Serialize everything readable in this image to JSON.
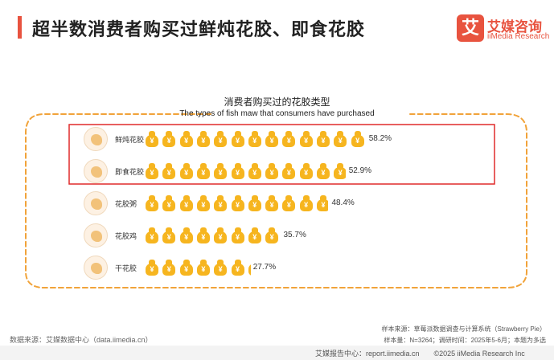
{
  "header": {
    "title": "超半数消费者购买过鲜炖花胶、即食花胶"
  },
  "logo": {
    "mark": "艾",
    "name_cn": "艾媒咨询",
    "name_en": "iiMedia Research"
  },
  "chart_data": {
    "type": "bar",
    "title": "消费者购买过的花胶类型",
    "subtitle": "The types of fish maw that consumers have purchased",
    "categories": [
      "鲜炖花胶",
      "即食花胶",
      "花胶粥",
      "花胶鸡",
      "干花胶"
    ],
    "values": [
      58.2,
      52.9,
      48.4,
      35.7,
      27.7
    ],
    "value_labels": [
      "58.2%",
      "52.9%",
      "48.4%",
      "35.7%",
      "27.7%"
    ],
    "unit": "%",
    "xlim": [
      0,
      100
    ],
    "highlighted": [
      "鲜炖花胶",
      "即食花胶"
    ],
    "highlight_color": "#e02a2a",
    "mark_symbol": "¥",
    "mark_color": "#f6b51f",
    "frame_color": "#f1a33a",
    "grid": false,
    "legend": "none"
  },
  "footer": {
    "source_left": "数据来源：艾媒数据中心（data.iimedia.cn）",
    "sample_source": "样本来源：草莓派数据调查与计算系统（Strawberry Pie）",
    "sample_info": "样本量：N=3264；调研时间：2025年5-6月；本题为多选",
    "bottom": "艾媒报告中心：report.iimedia.cn　　©2025  iiMedia Research Inc"
  }
}
